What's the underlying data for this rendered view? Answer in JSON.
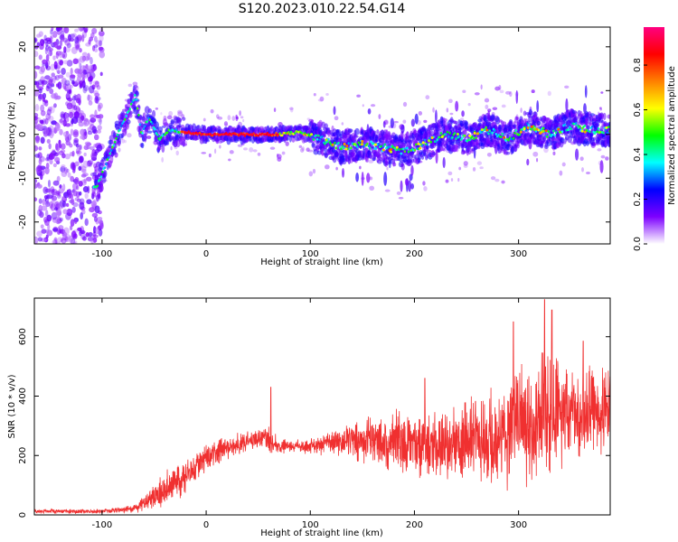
{
  "title": "S120.2023.010.22.54.G14",
  "chart_data": [
    {
      "type": "heatmap",
      "xlabel": "Height of straight line (km)",
      "ylabel": "Frequency (Hz)",
      "xlim": [
        -165,
        388
      ],
      "ylim": [
        -25,
        24.5
      ],
      "xticks": [
        -100,
        0,
        100,
        200,
        300
      ],
      "yticks": [
        -20,
        -10,
        0,
        10,
        20
      ],
      "colorbar": {
        "label": "Normalized spectral amplitude",
        "range": [
          0,
          0.97
        ],
        "ticks": [
          0.0,
          0.2,
          0.4,
          0.6,
          0.8
        ],
        "colormap": [
          "#ffffff",
          "#7d00ff",
          "#0000ff",
          "#00ffff",
          "#00ff00",
          "#ffff00",
          "#ff8000",
          "#ff0000",
          "#ff0080"
        ]
      },
      "ridge": [
        {
          "x": -105,
          "y": -12
        },
        {
          "x": -95,
          "y": -6
        },
        {
          "x": -85,
          "y": 0
        },
        {
          "x": -75,
          "y": 5
        },
        {
          "x": -68,
          "y": 9
        },
        {
          "x": -62,
          "y": 0
        },
        {
          "x": -55,
          "y": 4
        },
        {
          "x": -45,
          "y": -1
        },
        {
          "x": -35,
          "y": 1
        },
        {
          "x": -20,
          "y": 0.5
        },
        {
          "x": 0,
          "y": 0
        },
        {
          "x": 40,
          "y": 0
        },
        {
          "x": 70,
          "y": 0
        },
        {
          "x": 90,
          "y": 0.5
        },
        {
          "x": 110,
          "y": -1
        },
        {
          "x": 130,
          "y": -3
        },
        {
          "x": 150,
          "y": -2
        },
        {
          "x": 170,
          "y": -3
        },
        {
          "x": 190,
          "y": -4
        },
        {
          "x": 210,
          "y": -2
        },
        {
          "x": 230,
          "y": 0
        },
        {
          "x": 250,
          "y": -1
        },
        {
          "x": 270,
          "y": 1
        },
        {
          "x": 290,
          "y": -1
        },
        {
          "x": 310,
          "y": 2
        },
        {
          "x": 330,
          "y": 0
        },
        {
          "x": 350,
          "y": 2
        },
        {
          "x": 370,
          "y": 1
        },
        {
          "x": 388,
          "y": 1
        }
      ]
    },
    {
      "type": "line",
      "xlabel": "Height of straight line (km)",
      "ylabel": "SNR (10 * v/v)",
      "xlim": [
        -165,
        388
      ],
      "ylim": [
        0,
        730
      ],
      "xticks": [
        -100,
        0,
        100,
        200,
        300
      ],
      "yticks": [
        0,
        200,
        400,
        600
      ],
      "color": "#f03030",
      "envelope": [
        {
          "x": -165,
          "mean": 12,
          "amp": 6
        },
        {
          "x": -100,
          "mean": 12,
          "amp": 6
        },
        {
          "x": -70,
          "mean": 20,
          "amp": 10
        },
        {
          "x": -55,
          "mean": 50,
          "amp": 30
        },
        {
          "x": -40,
          "mean": 85,
          "amp": 45
        },
        {
          "x": -25,
          "mean": 120,
          "amp": 50
        },
        {
          "x": -15,
          "mean": 155,
          "amp": 45
        },
        {
          "x": 0,
          "mean": 190,
          "amp": 40
        },
        {
          "x": 20,
          "mean": 225,
          "amp": 35
        },
        {
          "x": 40,
          "mean": 250,
          "amp": 25
        },
        {
          "x": 55,
          "mean": 260,
          "amp": 25
        },
        {
          "x": 62,
          "mean": 250,
          "amp": 40
        },
        {
          "x": 70,
          "mean": 230,
          "amp": 18
        },
        {
          "x": 100,
          "mean": 232,
          "amp": 22
        },
        {
          "x": 130,
          "mean": 245,
          "amp": 40
        },
        {
          "x": 160,
          "mean": 250,
          "amp": 70
        },
        {
          "x": 190,
          "mean": 245,
          "amp": 90
        },
        {
          "x": 220,
          "mean": 235,
          "amp": 85
        },
        {
          "x": 250,
          "mean": 250,
          "amp": 110
        },
        {
          "x": 280,
          "mean": 265,
          "amp": 140
        },
        {
          "x": 300,
          "mean": 300,
          "amp": 170
        },
        {
          "x": 320,
          "mean": 330,
          "amp": 180
        },
        {
          "x": 340,
          "mean": 340,
          "amp": 160
        },
        {
          "x": 360,
          "mean": 345,
          "amp": 120
        },
        {
          "x": 388,
          "mean": 360,
          "amp": 110
        }
      ],
      "peaks": [
        {
          "x": 62,
          "y": 430
        },
        {
          "x": 325,
          "y": 725
        },
        {
          "x": 332,
          "y": 690
        },
        {
          "x": 295,
          "y": 650
        },
        {
          "x": 362,
          "y": 585
        },
        {
          "x": 210,
          "y": 460
        }
      ]
    }
  ]
}
